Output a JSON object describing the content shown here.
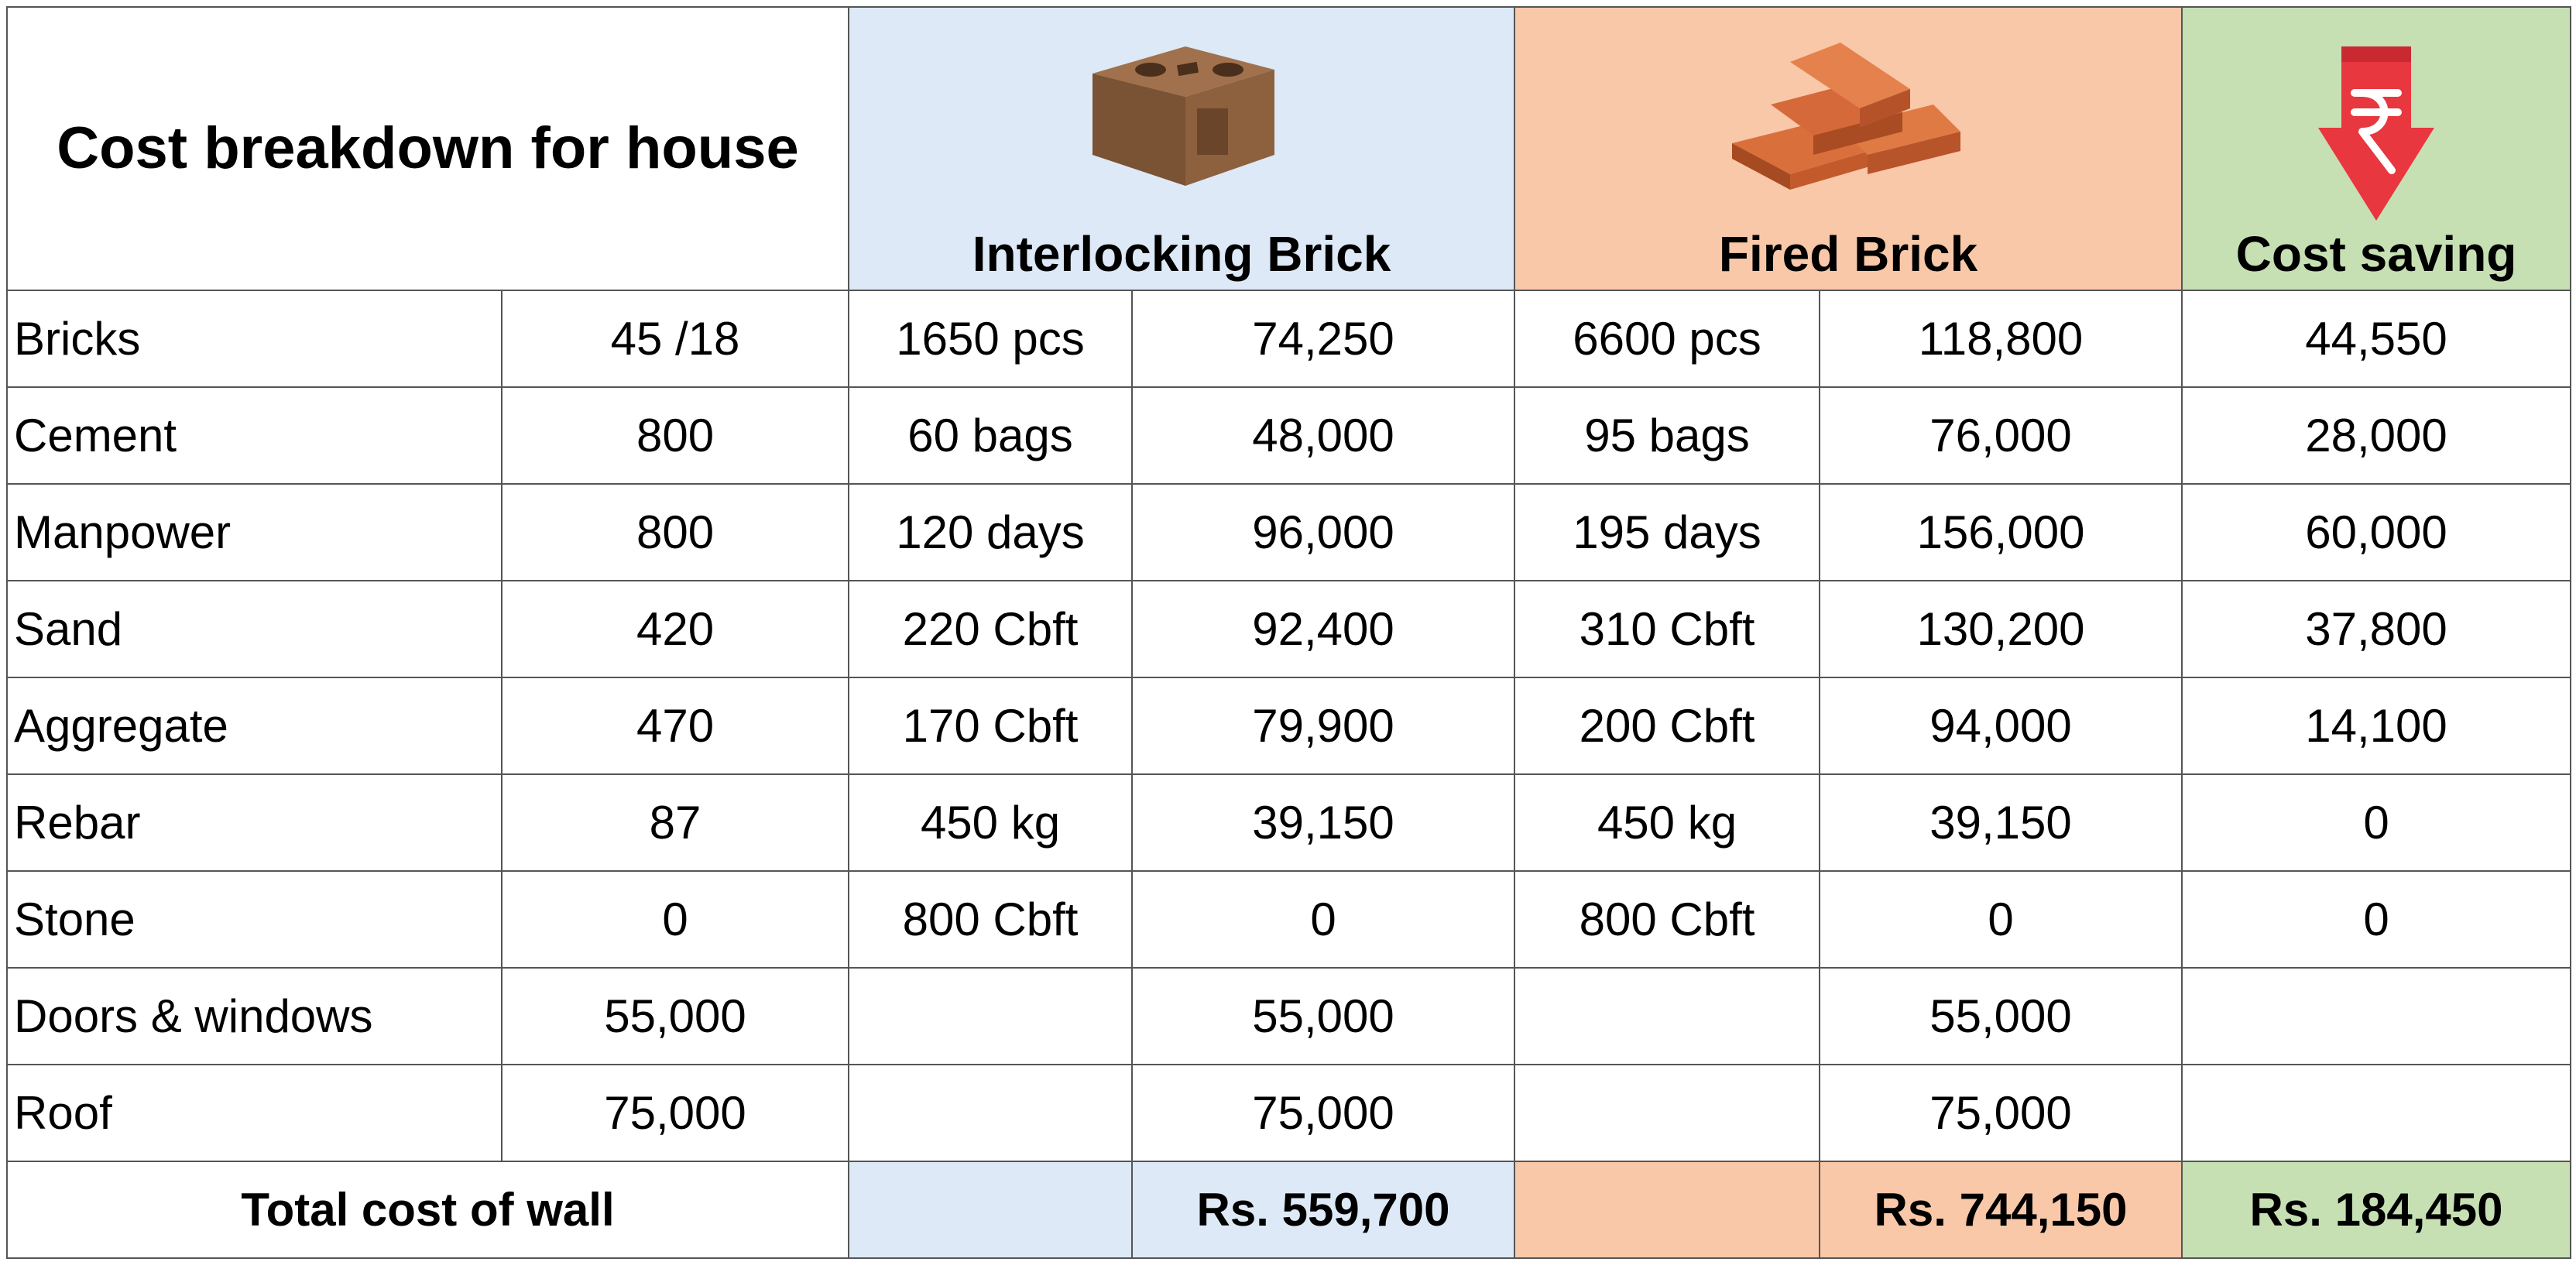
{
  "title": "Cost breakdown for house",
  "columns": {
    "interlocking": "Interlocking Brick",
    "fired": "Fired Brick",
    "saving": "Cost saving"
  },
  "icons": {
    "interlocking": "interlocking-brick-icon",
    "fired": "fired-brick-stack-icon",
    "saving": "rupee-down-arrow-icon"
  },
  "colors": {
    "interlocking_bg": "#dde9f6",
    "fired_bg": "#f8c8a9",
    "saving_bg": "#c6e0b4",
    "arrow_red": "#e8373f"
  },
  "rows": [
    {
      "item": "Bricks",
      "rate": "45 /18",
      "il_qty": "1650 pcs",
      "il_cost": "74,250",
      "fb_qty": "6600 pcs",
      "fb_cost": "118,800",
      "saving": "44,550"
    },
    {
      "item": "Cement",
      "rate": "800",
      "il_qty": "60 bags",
      "il_cost": "48,000",
      "fb_qty": "95 bags",
      "fb_cost": "76,000",
      "saving": "28,000"
    },
    {
      "item": "Manpower",
      "rate": "800",
      "il_qty": "120 days",
      "il_cost": "96,000",
      "fb_qty": "195 days",
      "fb_cost": "156,000",
      "saving": "60,000"
    },
    {
      "item": "Sand",
      "rate": "420",
      "il_qty": "220 Cbft",
      "il_cost": "92,400",
      "fb_qty": "310 Cbft",
      "fb_cost": "130,200",
      "saving": "37,800"
    },
    {
      "item": "Aggregate",
      "rate": "470",
      "il_qty": "170 Cbft",
      "il_cost": "79,900",
      "fb_qty": "200 Cbft",
      "fb_cost": "94,000",
      "saving": "14,100"
    },
    {
      "item": "Rebar",
      "rate": "87",
      "il_qty": "450 kg",
      "il_cost": "39,150",
      "fb_qty": "450 kg",
      "fb_cost": "39,150",
      "saving": "0"
    },
    {
      "item": "Stone",
      "rate": "0",
      "il_qty": "800 Cbft",
      "il_cost": "0",
      "fb_qty": "800 Cbft",
      "fb_cost": "0",
      "saving": "0"
    },
    {
      "item": "Doors & windows",
      "rate": "55,000",
      "il_qty": "",
      "il_cost": "55,000",
      "fb_qty": "",
      "fb_cost": "55,000",
      "saving": ""
    },
    {
      "item": "Roof",
      "rate": "75,000",
      "il_qty": "",
      "il_cost": "75,000",
      "fb_qty": "",
      "fb_cost": "75,000",
      "saving": ""
    }
  ],
  "total": {
    "label": "Total cost of wall",
    "interlocking": "Rs. 559,700",
    "fired": "Rs. 744,150",
    "saving": "Rs. 184,450"
  }
}
